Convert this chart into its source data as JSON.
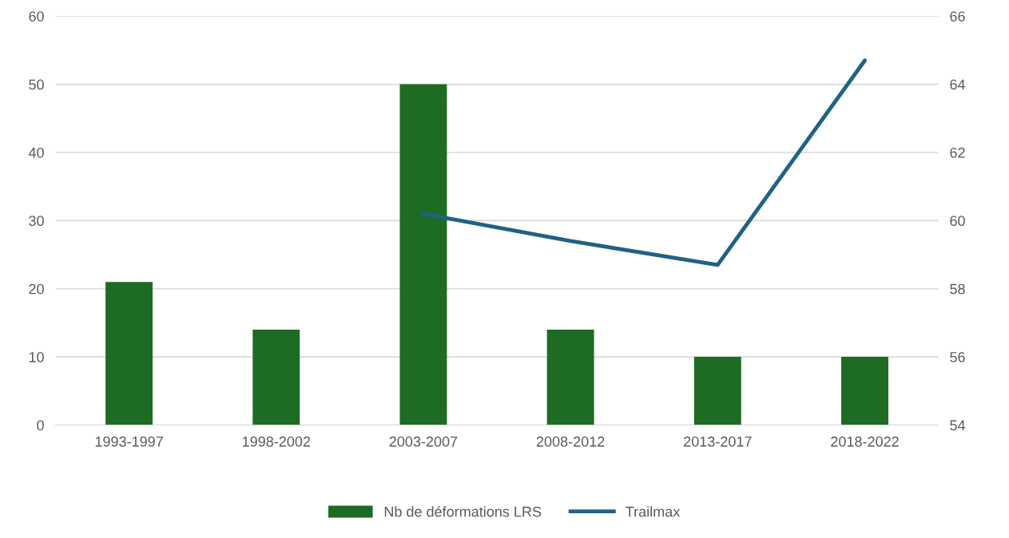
{
  "chart_data": {
    "type": "bar",
    "categories": [
      "1993-1997",
      "1998-2002",
      "2003-2007",
      "2008-2012",
      "2013-2017",
      "2018-2022"
    ],
    "series": [
      {
        "name": "Nb de déformations LRS",
        "color": "#1e6b23",
        "values": [
          21,
          14,
          50,
          14,
          10,
          10
        ]
      },
      {
        "name": "Trailmax",
        "type": "line",
        "axis": "y2",
        "color": "#1f6285",
        "values": [
          null,
          null,
          60.2,
          59.4,
          58.7,
          64.7
        ]
      }
    ],
    "ylim": [
      0,
      60
    ],
    "yticks": [
      0,
      10,
      20,
      30,
      40,
      50,
      60
    ],
    "y2lim": [
      54,
      66
    ],
    "y2ticks": [
      54,
      56,
      58,
      60,
      62,
      64,
      66
    ],
    "grid": "y",
    "legend": "bottom",
    "marker": "none",
    "line_style": "solid"
  }
}
